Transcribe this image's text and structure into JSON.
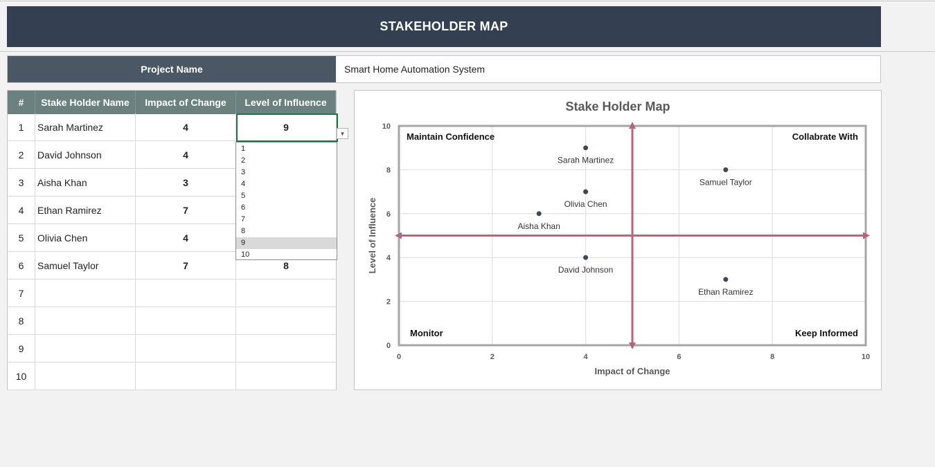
{
  "banner": {
    "title": "STAKEHOLDER MAP"
  },
  "project": {
    "label": "Project Name",
    "value": "Smart Home Automation System"
  },
  "table": {
    "headers": [
      "#",
      "Stake Holder Name",
      "Impact of Change",
      "Level of Influence"
    ],
    "rows": [
      {
        "num": "1",
        "name": "Sarah Martinez",
        "impact": "4",
        "influence": "9"
      },
      {
        "num": "2",
        "name": "David Johnson",
        "impact": "4",
        "influence": ""
      },
      {
        "num": "3",
        "name": "Aisha Khan",
        "impact": "3",
        "influence": ""
      },
      {
        "num": "4",
        "name": "Ethan Ramirez",
        "impact": "7",
        "influence": ""
      },
      {
        "num": "5",
        "name": "Olivia Chen",
        "impact": "4",
        "influence": ""
      },
      {
        "num": "6",
        "name": "Samuel Taylor",
        "impact": "7",
        "influence": "8"
      },
      {
        "num": "7",
        "name": "",
        "impact": "",
        "influence": ""
      },
      {
        "num": "8",
        "name": "",
        "impact": "",
        "influence": ""
      },
      {
        "num": "9",
        "name": "",
        "impact": "",
        "influence": ""
      },
      {
        "num": "10",
        "name": "",
        "impact": "",
        "influence": ""
      }
    ]
  },
  "dropdown": {
    "options": [
      "1",
      "2",
      "3",
      "4",
      "5",
      "6",
      "7",
      "8",
      "9",
      "10"
    ],
    "selected": "9",
    "button_glyph": "▼",
    "icon": "chevron-down-icon"
  },
  "chart_data": {
    "type": "scatter",
    "title": "Stake Holder Map",
    "xlabel": "Impact of Change",
    "ylabel": "Level of Influence",
    "xlim": [
      0,
      10
    ],
    "ylim": [
      0,
      10
    ],
    "xticks": [
      "0",
      "2",
      "4",
      "6",
      "8",
      "10"
    ],
    "yticks": [
      "0",
      "2",
      "4",
      "6",
      "8",
      "10"
    ],
    "grid": true,
    "points": [
      {
        "label": "Sarah Martinez",
        "x": 4,
        "y": 9
      },
      {
        "label": "David Johnson",
        "x": 4,
        "y": 4
      },
      {
        "label": "Aisha Khan",
        "x": 3,
        "y": 6
      },
      {
        "label": "Ethan Ramirez",
        "x": 7,
        "y": 3
      },
      {
        "label": "Olivia Chen",
        "x": 4,
        "y": 7
      },
      {
        "label": "Samuel Taylor",
        "x": 7,
        "y": 8
      }
    ],
    "quadrants": {
      "top_left": "Maintain Confidence",
      "top_right": "Collabrate With",
      "bottom_left": "Monitor",
      "bottom_right": "Keep Informed"
    },
    "divider_x": 5,
    "divider_y": 5,
    "colors": {
      "divider": "#b5667a",
      "point": "#3d4756",
      "frame": "#a6a6a6",
      "grid": "#dcdcdc"
    }
  }
}
